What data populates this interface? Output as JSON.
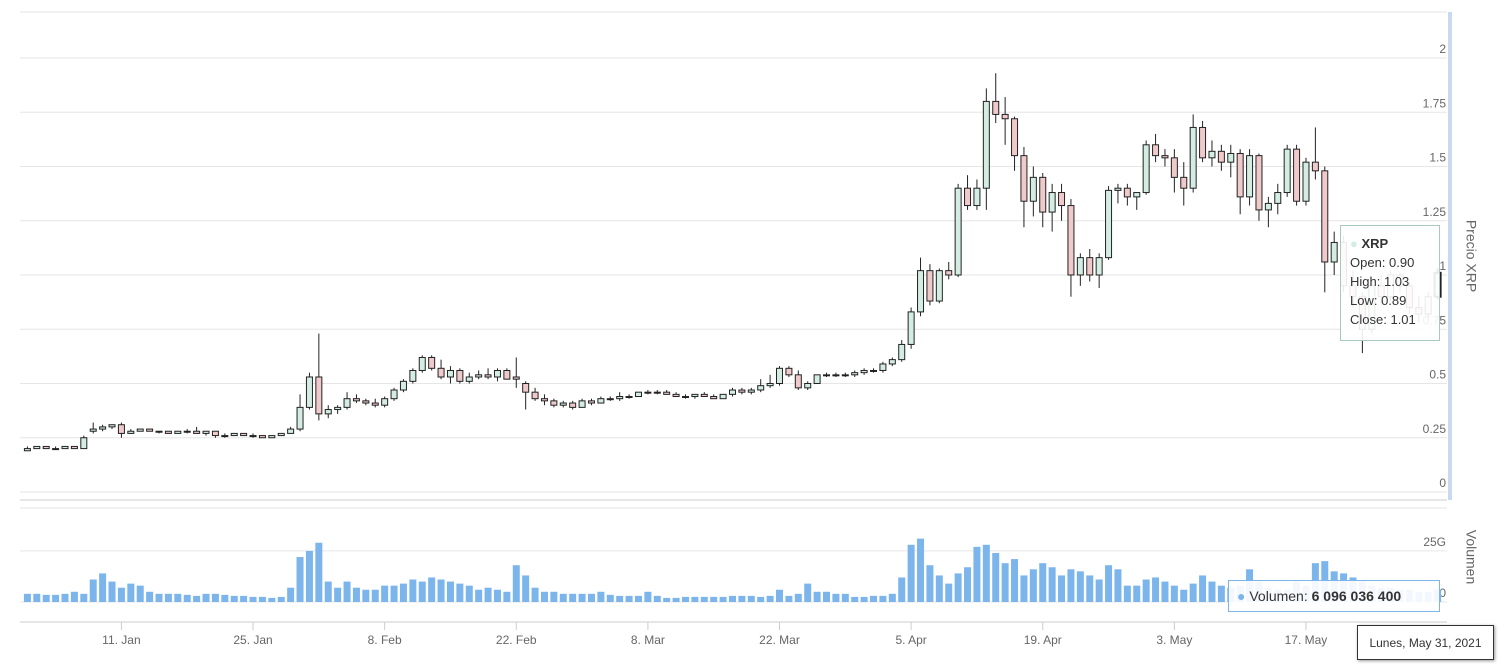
{
  "chart_data": {
    "type": "candlestick",
    "x": [
      "2021-01-01",
      "2021-01-02",
      "2021-01-03",
      "2021-01-04",
      "2021-01-05",
      "2021-01-06",
      "2021-01-07",
      "2021-01-08",
      "2021-01-09",
      "2021-01-10",
      "2021-01-11",
      "2021-01-12",
      "2021-01-13",
      "2021-01-14",
      "2021-01-15",
      "2021-01-16",
      "2021-01-17",
      "2021-01-18",
      "2021-01-19",
      "2021-01-20",
      "2021-01-21",
      "2021-01-22",
      "2021-01-23",
      "2021-01-24",
      "2021-01-25",
      "2021-01-26",
      "2021-01-27",
      "2021-01-28",
      "2021-01-29",
      "2021-01-30",
      "2021-01-31",
      "2021-02-01",
      "2021-02-02",
      "2021-02-03",
      "2021-02-04",
      "2021-02-05",
      "2021-02-06",
      "2021-02-07",
      "2021-02-08",
      "2021-02-09",
      "2021-02-10",
      "2021-02-11",
      "2021-02-12",
      "2021-02-13",
      "2021-02-14",
      "2021-02-15",
      "2021-02-16",
      "2021-02-17",
      "2021-02-18",
      "2021-02-19",
      "2021-02-20",
      "2021-02-21",
      "2021-02-22",
      "2021-02-23",
      "2021-02-24",
      "2021-02-25",
      "2021-02-26",
      "2021-02-27",
      "2021-02-28",
      "2021-03-01",
      "2021-03-02",
      "2021-03-03",
      "2021-03-04",
      "2021-03-05",
      "2021-03-06",
      "2021-03-07",
      "2021-03-08",
      "2021-03-09",
      "2021-03-10",
      "2021-03-11",
      "2021-03-12",
      "2021-03-13",
      "2021-03-14",
      "2021-03-15",
      "2021-03-16",
      "2021-03-17",
      "2021-03-18",
      "2021-03-19",
      "2021-03-20",
      "2021-03-21",
      "2021-03-22",
      "2021-03-23",
      "2021-03-24",
      "2021-03-25",
      "2021-03-26",
      "2021-03-27",
      "2021-03-28",
      "2021-03-29",
      "2021-03-30",
      "2021-03-31",
      "2021-04-01",
      "2021-04-02",
      "2021-04-03",
      "2021-04-04",
      "2021-04-05",
      "2021-04-06",
      "2021-04-07",
      "2021-04-08",
      "2021-04-09",
      "2021-04-10",
      "2021-04-11",
      "2021-04-12",
      "2021-04-13",
      "2021-04-14",
      "2021-04-15",
      "2021-04-16",
      "2021-04-17",
      "2021-04-18",
      "2021-04-19",
      "2021-04-20",
      "2021-04-21",
      "2021-04-22",
      "2021-04-23",
      "2021-04-24",
      "2021-04-25",
      "2021-04-26",
      "2021-04-27",
      "2021-04-28",
      "2021-04-29",
      "2021-04-30",
      "2021-05-01",
      "2021-05-02",
      "2021-05-03",
      "2021-05-04",
      "2021-05-05",
      "2021-05-06",
      "2021-05-07",
      "2021-05-08",
      "2021-05-09",
      "2021-05-10",
      "2021-05-11",
      "2021-05-12",
      "2021-05-13",
      "2021-05-14",
      "2021-05-15",
      "2021-05-16",
      "2021-05-17",
      "2021-05-18",
      "2021-05-19",
      "2021-05-20",
      "2021-05-21",
      "2021-05-22",
      "2021-05-23",
      "2021-05-24",
      "2021-05-25",
      "2021-05-26",
      "2021-05-27",
      "2021-05-28",
      "2021-05-29",
      "2021-05-30",
      "2021-05-31"
    ],
    "series": [
      {
        "name": "XRP",
        "up_color": "#d3ede3",
        "down_color": "#f0caca",
        "line_color": "#222",
        "open": [
          0.19,
          0.2,
          0.21,
          0.2,
          0.2,
          0.21,
          0.2,
          0.28,
          0.29,
          0.3,
          0.31,
          0.27,
          0.28,
          0.29,
          0.28,
          0.28,
          0.27,
          0.28,
          0.28,
          0.27,
          0.28,
          0.26,
          0.26,
          0.27,
          0.26,
          0.26,
          0.25,
          0.26,
          0.27,
          0.29,
          0.39,
          0.53,
          0.36,
          0.38,
          0.39,
          0.43,
          0.42,
          0.41,
          0.4,
          0.43,
          0.47,
          0.51,
          0.56,
          0.62,
          0.57,
          0.53,
          0.56,
          0.51,
          0.53,
          0.54,
          0.53,
          0.56,
          0.53,
          0.5,
          0.46,
          0.43,
          0.42,
          0.4,
          0.41,
          0.39,
          0.42,
          0.41,
          0.43,
          0.43,
          0.44,
          0.44,
          0.46,
          0.46,
          0.46,
          0.45,
          0.44,
          0.44,
          0.45,
          0.44,
          0.43,
          0.45,
          0.47,
          0.46,
          0.47,
          0.49,
          0.5,
          0.57,
          0.54,
          0.48,
          0.5,
          0.54,
          0.54,
          0.54,
          0.54,
          0.55,
          0.56,
          0.56,
          0.59,
          0.61,
          0.68,
          0.83,
          1.02,
          0.88,
          1.02,
          1.0,
          1.4,
          1.32,
          1.4,
          1.8,
          1.74,
          1.72,
          1.55,
          1.34,
          1.45,
          1.29,
          1.38,
          1.32,
          1.0,
          1.08,
          1.0,
          1.08,
          1.39,
          1.4,
          1.36,
          1.38,
          1.6,
          1.55,
          1.54,
          1.45,
          1.4,
          1.68,
          1.54,
          1.57,
          1.52,
          1.56,
          1.36,
          1.55,
          1.3,
          1.33,
          1.38,
          1.58,
          1.34,
          1.52,
          1.48,
          1.06,
          1.15,
          0.95,
          0.9,
          0.75,
          0.95,
          0.9,
          1.0,
          0.95,
          0.85,
          0.82,
          0.9
        ],
        "high": [
          0.21,
          0.21,
          0.21,
          0.21,
          0.21,
          0.21,
          0.26,
          0.32,
          0.31,
          0.31,
          0.32,
          0.29,
          0.29,
          0.29,
          0.28,
          0.28,
          0.28,
          0.29,
          0.3,
          0.28,
          0.28,
          0.27,
          0.27,
          0.27,
          0.27,
          0.26,
          0.26,
          0.27,
          0.3,
          0.45,
          0.55,
          0.73,
          0.4,
          0.4,
          0.46,
          0.45,
          0.43,
          0.43,
          0.44,
          0.48,
          0.52,
          0.57,
          0.63,
          0.63,
          0.61,
          0.58,
          0.57,
          0.55,
          0.56,
          0.57,
          0.57,
          0.57,
          0.62,
          0.51,
          0.48,
          0.45,
          0.43,
          0.42,
          0.42,
          0.43,
          0.43,
          0.44,
          0.44,
          0.46,
          0.45,
          0.46,
          0.47,
          0.47,
          0.47,
          0.46,
          0.45,
          0.45,
          0.46,
          0.45,
          0.45,
          0.48,
          0.48,
          0.48,
          0.52,
          0.54,
          0.58,
          0.58,
          0.56,
          0.51,
          0.54,
          0.55,
          0.55,
          0.55,
          0.56,
          0.57,
          0.57,
          0.6,
          0.62,
          0.7,
          0.85,
          1.08,
          1.05,
          1.03,
          1.06,
          1.42,
          1.46,
          1.44,
          1.86,
          1.93,
          1.82,
          1.73,
          1.59,
          1.5,
          1.47,
          1.42,
          1.42,
          1.35,
          1.1,
          1.12,
          1.1,
          1.41,
          1.42,
          1.42,
          1.38,
          1.62,
          1.65,
          1.58,
          1.58,
          1.52,
          1.74,
          1.71,
          1.62,
          1.6,
          1.6,
          1.58,
          1.58,
          1.56,
          1.36,
          1.42,
          1.6,
          1.6,
          1.54,
          1.68,
          1.5,
          1.2,
          1.18,
          1.02,
          0.92,
          0.98,
          1.0,
          1.02,
          1.01,
          0.97,
          0.9,
          0.92,
          1.03
        ],
        "low": [
          0.19,
          0.2,
          0.2,
          0.2,
          0.2,
          0.2,
          0.2,
          0.27,
          0.28,
          0.29,
          0.25,
          0.27,
          0.28,
          0.28,
          0.27,
          0.27,
          0.27,
          0.27,
          0.27,
          0.26,
          0.25,
          0.25,
          0.26,
          0.26,
          0.25,
          0.25,
          0.25,
          0.26,
          0.27,
          0.28,
          0.38,
          0.33,
          0.34,
          0.36,
          0.38,
          0.41,
          0.4,
          0.39,
          0.39,
          0.42,
          0.46,
          0.5,
          0.55,
          0.56,
          0.52,
          0.5,
          0.5,
          0.5,
          0.52,
          0.52,
          0.51,
          0.52,
          0.48,
          0.38,
          0.42,
          0.4,
          0.39,
          0.39,
          0.38,
          0.39,
          0.4,
          0.41,
          0.42,
          0.42,
          0.43,
          0.44,
          0.45,
          0.45,
          0.45,
          0.44,
          0.43,
          0.43,
          0.44,
          0.43,
          0.43,
          0.44,
          0.45,
          0.45,
          0.46,
          0.48,
          0.49,
          0.53,
          0.47,
          0.47,
          0.5,
          0.53,
          0.53,
          0.53,
          0.53,
          0.54,
          0.55,
          0.55,
          0.58,
          0.6,
          0.66,
          0.81,
          0.86,
          0.87,
          0.98,
          0.99,
          1.3,
          1.3,
          1.3,
          1.7,
          1.6,
          1.48,
          1.22,
          1.27,
          1.22,
          1.2,
          1.25,
          0.9,
          0.95,
          0.97,
          0.94,
          1.07,
          1.33,
          1.32,
          1.3,
          1.37,
          1.52,
          1.5,
          1.38,
          1.32,
          1.38,
          1.52,
          1.5,
          1.48,
          1.45,
          1.28,
          1.32,
          1.25,
          1.22,
          1.28,
          1.36,
          1.32,
          1.32,
          1.44,
          0.92,
          1.0,
          0.92,
          0.85,
          0.64,
          0.73,
          0.86,
          0.88,
          0.92,
          0.82,
          0.78,
          0.8,
          0.89
        ],
        "close": [
          0.2,
          0.21,
          0.2,
          0.2,
          0.21,
          0.2,
          0.25,
          0.29,
          0.3,
          0.31,
          0.27,
          0.28,
          0.29,
          0.28,
          0.28,
          0.27,
          0.28,
          0.28,
          0.27,
          0.28,
          0.26,
          0.26,
          0.27,
          0.26,
          0.26,
          0.25,
          0.26,
          0.27,
          0.29,
          0.39,
          0.53,
          0.36,
          0.38,
          0.39,
          0.43,
          0.42,
          0.41,
          0.4,
          0.43,
          0.47,
          0.51,
          0.56,
          0.62,
          0.57,
          0.53,
          0.56,
          0.51,
          0.53,
          0.54,
          0.53,
          0.56,
          0.52,
          0.52,
          0.46,
          0.43,
          0.42,
          0.4,
          0.41,
          0.39,
          0.42,
          0.41,
          0.43,
          0.43,
          0.44,
          0.44,
          0.46,
          0.46,
          0.46,
          0.45,
          0.44,
          0.44,
          0.45,
          0.44,
          0.43,
          0.45,
          0.47,
          0.46,
          0.47,
          0.49,
          0.5,
          0.57,
          0.54,
          0.48,
          0.5,
          0.54,
          0.54,
          0.54,
          0.54,
          0.55,
          0.56,
          0.56,
          0.59,
          0.61,
          0.68,
          0.83,
          1.02,
          0.88,
          1.02,
          1.0,
          1.4,
          1.32,
          1.4,
          1.8,
          1.74,
          1.72,
          1.55,
          1.34,
          1.45,
          1.29,
          1.38,
          1.32,
          1.0,
          1.08,
          1.0,
          1.08,
          1.39,
          1.4,
          1.36,
          1.38,
          1.6,
          1.55,
          1.54,
          1.45,
          1.4,
          1.68,
          1.54,
          1.57,
          1.52,
          1.56,
          1.36,
          1.55,
          1.3,
          1.33,
          1.38,
          1.58,
          1.34,
          1.52,
          1.48,
          1.06,
          1.15,
          0.95,
          0.9,
          0.75,
          0.95,
          0.9,
          1.0,
          0.95,
          0.85,
          0.82,
          0.9,
          1.01
        ]
      }
    ],
    "volume": {
      "name": "Volumen",
      "color": "#7cb5ec",
      "axis": "y2",
      "values": [
        4000000000.0,
        4000000000.0,
        3500000000.0,
        3500000000.0,
        4000000000.0,
        5000000000.0,
        4000000000.0,
        11000000000.0,
        14000000000.0,
        10000000000.0,
        7000000000.0,
        9000000000.0,
        8000000000.0,
        5000000000.0,
        4000000000.0,
        4000000000.0,
        4000000000.0,
        3500000000.0,
        3000000000.0,
        4000000000.0,
        4000000000.0,
        3500000000.0,
        3000000000.0,
        3000000000.0,
        2500000000.0,
        2500000000.0,
        2000000000.0,
        2500000000.0,
        7000000000.0,
        22000000000.0,
        25000000000.0,
        29000000000.0,
        10000000000.0,
        7000000000.0,
        10000000000.0,
        7000000000.0,
        6000000000.0,
        6000000000.0,
        8000000000.0,
        8000000000.0,
        9000000000.0,
        11000000000.0,
        10000000000.0,
        12000000000.0,
        11000000000.0,
        10000000000.0,
        9000000000.0,
        8000000000.0,
        6000000000.0,
        7000000000.0,
        6000000000.0,
        5000000000.0,
        18000000000.0,
        13000000000.0,
        7000000000.0,
        5000000000.0,
        5000000000.0,
        4000000000.0,
        4000000000.0,
        4000000000.0,
        4000000000.0,
        5000000000.0,
        3500000000.0,
        3000000000.0,
        3000000000.0,
        3000000000.0,
        5000000000.0,
        3000000000.0,
        2000000000.0,
        2000000000.0,
        2500000000.0,
        2500000000.0,
        2500000000.0,
        2500000000.0,
        2500000000.0,
        3000000000.0,
        3000000000.0,
        3000000000.0,
        2500000000.0,
        3000000000.0,
        6000000000.0,
        3000000000.0,
        4000000000.0,
        9000000000.0,
        5000000000.0,
        5000000000.0,
        4000000000.0,
        4000000000.0,
        2500000000.0,
        2500000000.0,
        3000000000.0,
        3000000000.0,
        4000000000.0,
        12000000000.0,
        28000000000.0,
        31000000000.0,
        18000000000.0,
        13000000000.0,
        9000000000.0,
        14000000000.0,
        17000000000.0,
        27000000000.0,
        28000000000.0,
        24000000000.0,
        19000000000.0,
        21000000000.0,
        13000000000.0,
        16000000000.0,
        19000000000.0,
        17000000000.0,
        13000000000.0,
        16000000000.0,
        15000000000.0,
        13000000000.0,
        11000000000.0,
        18000000000.0,
        16000000000.0,
        8000000000.0,
        8000000000.0,
        11000000000.0,
        12000000000.0,
        10000000000.0,
        8000000000.0,
        6000000000.0,
        9000000000.0,
        13000000000.0,
        10000000000.0,
        8000000000.0,
        7000000000.0,
        8000000000.0,
        16000000000.0,
        10000000000.0,
        7000000000.0,
        6000000000.0,
        6000000000.0,
        10000000000.0,
        8000000000.0,
        19000000000.0,
        20000000000.0,
        15000000000.0,
        14000000000.0,
        12000000000.0,
        10000000000.0,
        8000000000.0,
        7000000000.0,
        7000000000.0,
        6000000000.0,
        6000000000.0,
        5000000000.0,
        5000000000.0,
        6096036400
      ]
    },
    "xlim": [
      "2020-12-31",
      "2021-06-01"
    ],
    "xticks": [
      {
        "value": "2021-01-11",
        "label": "11. Jan"
      },
      {
        "value": "2021-01-25",
        "label": "25. Jan"
      },
      {
        "value": "2021-02-08",
        "label": "8. Feb"
      },
      {
        "value": "2021-02-22",
        "label": "22. Feb"
      },
      {
        "value": "2021-03-08",
        "label": "8. Mar"
      },
      {
        "value": "2021-03-22",
        "label": "22. Mar"
      },
      {
        "value": "2021-04-05",
        "label": "5. Apr"
      },
      {
        "value": "2021-04-19",
        "label": "19. Apr"
      },
      {
        "value": "2021-05-03",
        "label": "3. May"
      },
      {
        "value": "2021-05-17",
        "label": "17. May"
      }
    ],
    "ylabel": "Precio XRP",
    "ylim": [
      0,
      2.2
    ],
    "yticks": [
      0,
      0.25,
      0.5,
      0.75,
      1,
      1.25,
      1.5,
      1.75,
      2
    ],
    "y2label": "Volumen",
    "y2lim": [
      0,
      46000000000.0
    ],
    "y2ticks": [
      0,
      {
        "value": 25000000000.0,
        "label": "25G"
      }
    ],
    "grid": true,
    "tooltip": {
      "series": "XRP",
      "lines": [
        "Open: 0.90",
        "High: 1.03",
        "Low: 0.89",
        "Close: 1.01"
      ],
      "volume_label": "Volumen:",
      "volume_value": "6 096 036 400",
      "date": "Lunes, May 31, 2021"
    }
  }
}
